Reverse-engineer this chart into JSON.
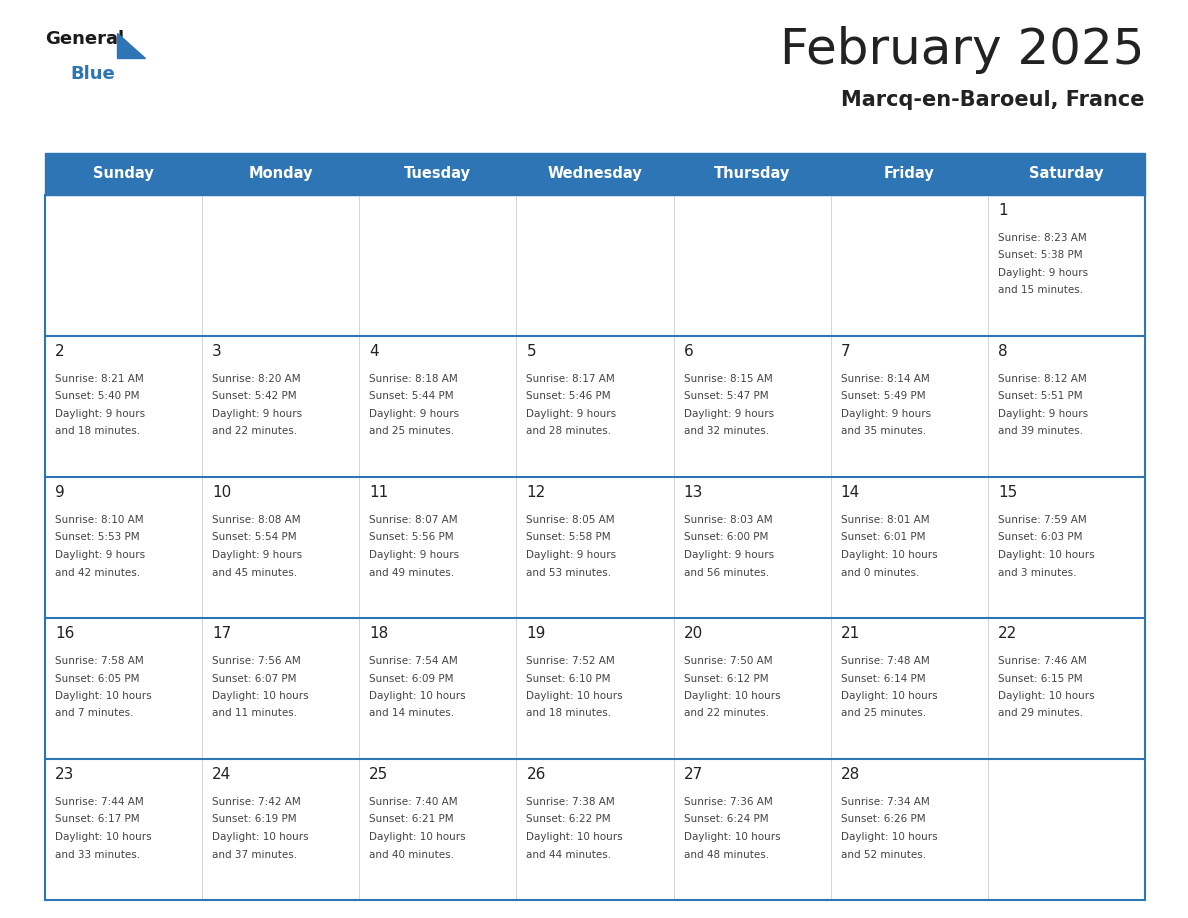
{
  "title": "February 2025",
  "subtitle": "Marcq-en-Baroeul, France",
  "days_of_week": [
    "Sunday",
    "Monday",
    "Tuesday",
    "Wednesday",
    "Thursday",
    "Friday",
    "Saturday"
  ],
  "header_bg": "#2E75B6",
  "header_text": "#FFFFFF",
  "separator_color": "#2E75B6",
  "day_num_color": "#222222",
  "cell_text_color": "#444444",
  "calendar": [
    [
      null,
      null,
      null,
      null,
      null,
      null,
      {
        "day": 1,
        "sunrise": "8:23 AM",
        "sunset": "5:38 PM",
        "daylight_h": "9 hours",
        "daylight_m": "and 15 minutes."
      }
    ],
    [
      {
        "day": 2,
        "sunrise": "8:21 AM",
        "sunset": "5:40 PM",
        "daylight_h": "9 hours",
        "daylight_m": "and 18 minutes."
      },
      {
        "day": 3,
        "sunrise": "8:20 AM",
        "sunset": "5:42 PM",
        "daylight_h": "9 hours",
        "daylight_m": "and 22 minutes."
      },
      {
        "day": 4,
        "sunrise": "8:18 AM",
        "sunset": "5:44 PM",
        "daylight_h": "9 hours",
        "daylight_m": "and 25 minutes."
      },
      {
        "day": 5,
        "sunrise": "8:17 AM",
        "sunset": "5:46 PM",
        "daylight_h": "9 hours",
        "daylight_m": "and 28 minutes."
      },
      {
        "day": 6,
        "sunrise": "8:15 AM",
        "sunset": "5:47 PM",
        "daylight_h": "9 hours",
        "daylight_m": "and 32 minutes."
      },
      {
        "day": 7,
        "sunrise": "8:14 AM",
        "sunset": "5:49 PM",
        "daylight_h": "9 hours",
        "daylight_m": "and 35 minutes."
      },
      {
        "day": 8,
        "sunrise": "8:12 AM",
        "sunset": "5:51 PM",
        "daylight_h": "9 hours",
        "daylight_m": "and 39 minutes."
      }
    ],
    [
      {
        "day": 9,
        "sunrise": "8:10 AM",
        "sunset": "5:53 PM",
        "daylight_h": "9 hours",
        "daylight_m": "and 42 minutes."
      },
      {
        "day": 10,
        "sunrise": "8:08 AM",
        "sunset": "5:54 PM",
        "daylight_h": "9 hours",
        "daylight_m": "and 45 minutes."
      },
      {
        "day": 11,
        "sunrise": "8:07 AM",
        "sunset": "5:56 PM",
        "daylight_h": "9 hours",
        "daylight_m": "and 49 minutes."
      },
      {
        "day": 12,
        "sunrise": "8:05 AM",
        "sunset": "5:58 PM",
        "daylight_h": "9 hours",
        "daylight_m": "and 53 minutes."
      },
      {
        "day": 13,
        "sunrise": "8:03 AM",
        "sunset": "6:00 PM",
        "daylight_h": "9 hours",
        "daylight_m": "and 56 minutes."
      },
      {
        "day": 14,
        "sunrise": "8:01 AM",
        "sunset": "6:01 PM",
        "daylight_h": "10 hours",
        "daylight_m": "and 0 minutes."
      },
      {
        "day": 15,
        "sunrise": "7:59 AM",
        "sunset": "6:03 PM",
        "daylight_h": "10 hours",
        "daylight_m": "and 3 minutes."
      }
    ],
    [
      {
        "day": 16,
        "sunrise": "7:58 AM",
        "sunset": "6:05 PM",
        "daylight_h": "10 hours",
        "daylight_m": "and 7 minutes."
      },
      {
        "day": 17,
        "sunrise": "7:56 AM",
        "sunset": "6:07 PM",
        "daylight_h": "10 hours",
        "daylight_m": "and 11 minutes."
      },
      {
        "day": 18,
        "sunrise": "7:54 AM",
        "sunset": "6:09 PM",
        "daylight_h": "10 hours",
        "daylight_m": "and 14 minutes."
      },
      {
        "day": 19,
        "sunrise": "7:52 AM",
        "sunset": "6:10 PM",
        "daylight_h": "10 hours",
        "daylight_m": "and 18 minutes."
      },
      {
        "day": 20,
        "sunrise": "7:50 AM",
        "sunset": "6:12 PM",
        "daylight_h": "10 hours",
        "daylight_m": "and 22 minutes."
      },
      {
        "day": 21,
        "sunrise": "7:48 AM",
        "sunset": "6:14 PM",
        "daylight_h": "10 hours",
        "daylight_m": "and 25 minutes."
      },
      {
        "day": 22,
        "sunrise": "7:46 AM",
        "sunset": "6:15 PM",
        "daylight_h": "10 hours",
        "daylight_m": "and 29 minutes."
      }
    ],
    [
      {
        "day": 23,
        "sunrise": "7:44 AM",
        "sunset": "6:17 PM",
        "daylight_h": "10 hours",
        "daylight_m": "and 33 minutes."
      },
      {
        "day": 24,
        "sunrise": "7:42 AM",
        "sunset": "6:19 PM",
        "daylight_h": "10 hours",
        "daylight_m": "and 37 minutes."
      },
      {
        "day": 25,
        "sunrise": "7:40 AM",
        "sunset": "6:21 PM",
        "daylight_h": "10 hours",
        "daylight_m": "and 40 minutes."
      },
      {
        "day": 26,
        "sunrise": "7:38 AM",
        "sunset": "6:22 PM",
        "daylight_h": "10 hours",
        "daylight_m": "and 44 minutes."
      },
      {
        "day": 27,
        "sunrise": "7:36 AM",
        "sunset": "6:24 PM",
        "daylight_h": "10 hours",
        "daylight_m": "and 48 minutes."
      },
      {
        "day": 28,
        "sunrise": "7:34 AM",
        "sunset": "6:26 PM",
        "daylight_h": "10 hours",
        "daylight_m": "and 52 minutes."
      },
      null
    ]
  ]
}
